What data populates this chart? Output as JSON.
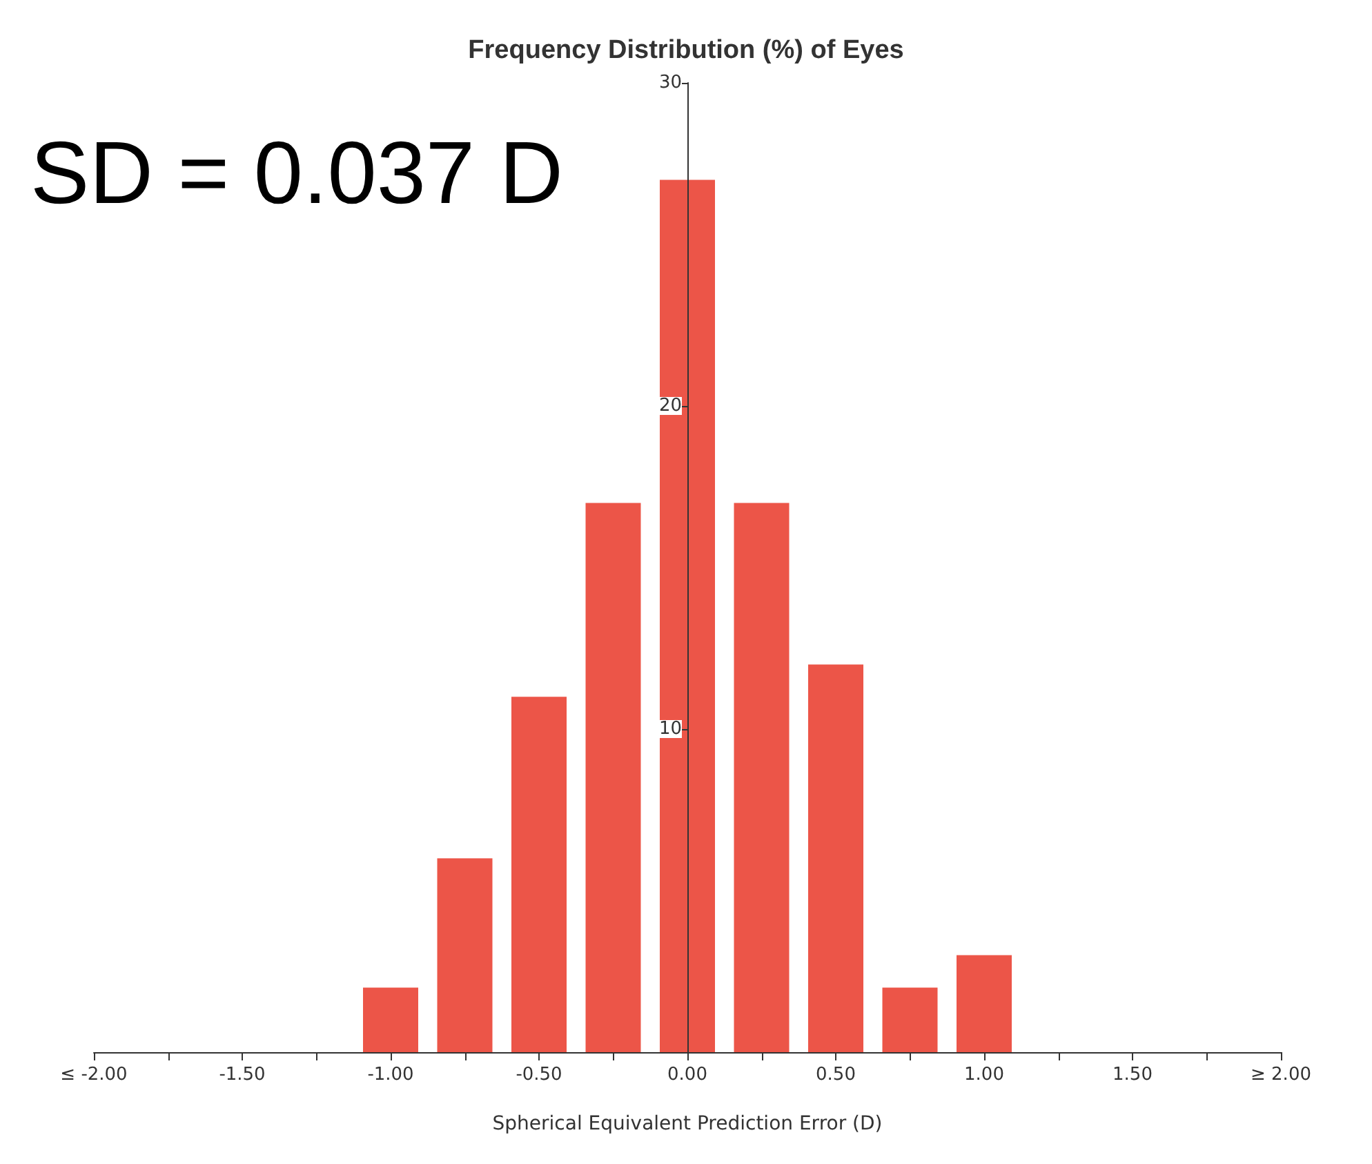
{
  "chart_data": {
    "type": "bar",
    "title": "Frequency Distribution (%) of Eyes",
    "xlabel": "Spherical Equivalent Prediction Error (D)",
    "annotations": [
      "SD = 0.037 D"
    ],
    "x": [
      -1.0,
      -0.75,
      -0.5,
      -0.25,
      0,
      0.25,
      0.5,
      0.75,
      1.0
    ],
    "values": [
      2,
      6,
      11,
      17,
      27,
      17,
      12,
      2,
      3
    ],
    "color": "#ec5548",
    "xlim": [
      -2,
      2
    ],
    "xticks": [
      {
        "value": -2,
        "label": "≤ -2.00"
      },
      {
        "value": -1.75,
        "label": null
      },
      {
        "value": -1.5,
        "label": "-1.50"
      },
      {
        "value": -1.25,
        "label": null
      },
      {
        "value": -1,
        "label": "-1.00"
      },
      {
        "value": -0.75,
        "label": null
      },
      {
        "value": -0.5,
        "label": "-0.50"
      },
      {
        "value": -0.25,
        "label": null
      },
      {
        "value": 0,
        "label": "0.00"
      },
      {
        "value": 0.25,
        "label": null
      },
      {
        "value": 0.5,
        "label": "0.50"
      },
      {
        "value": 0.75,
        "label": null
      },
      {
        "value": 1,
        "label": "1.00"
      },
      {
        "value": 1.25,
        "label": null
      },
      {
        "value": 1.5,
        "label": "1.50"
      },
      {
        "value": 1.75,
        "label": null
      },
      {
        "value": 2,
        "label": "≥ 2.00"
      }
    ],
    "ylim": [
      0,
      30
    ],
    "yticks": [
      10,
      20,
      30
    ]
  }
}
